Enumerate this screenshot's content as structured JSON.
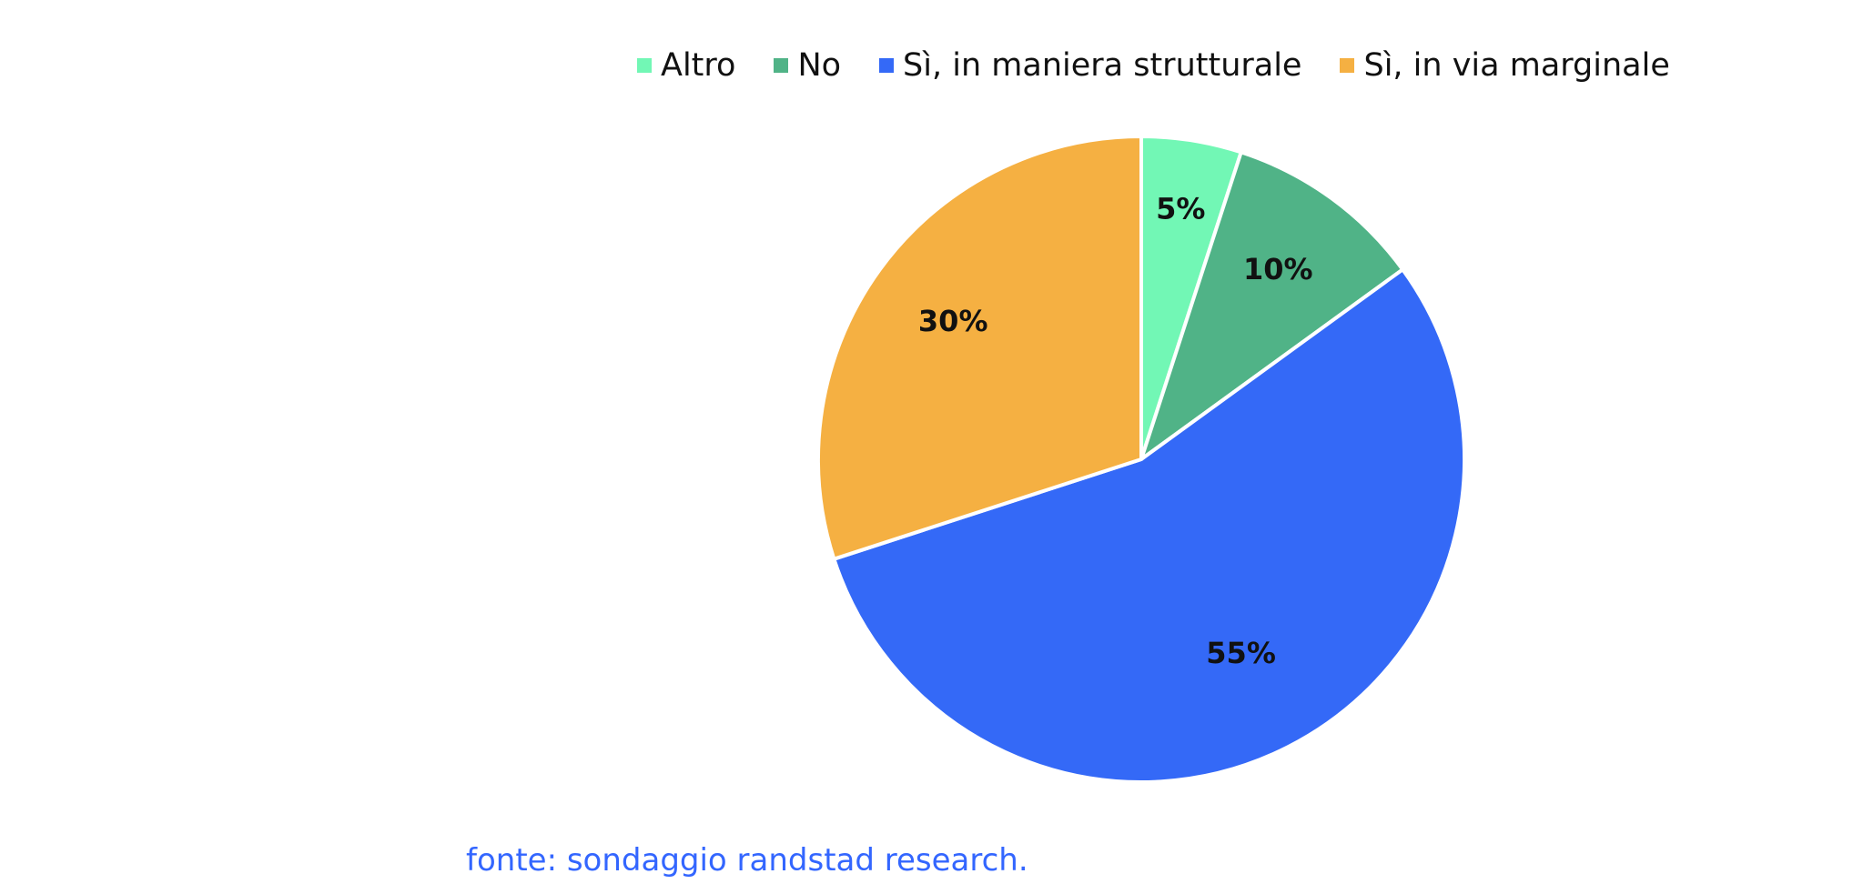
{
  "chart_data": {
    "type": "pie",
    "categories": [
      "Altro",
      "No",
      "Sì, in maniera strutturale",
      "Sì, in via marginale"
    ],
    "values": [
      5,
      10,
      55,
      30
    ],
    "labels": [
      "5%",
      "10%",
      "55%",
      "30%"
    ],
    "colors": [
      "#72f7b5",
      "#50b387",
      "#3469f7",
      "#f5b042"
    ],
    "legend_position": "top",
    "start_angle_deg": 0,
    "direction": "clockwise"
  },
  "source": {
    "text": "fonte: sondaggio randstad research."
  }
}
